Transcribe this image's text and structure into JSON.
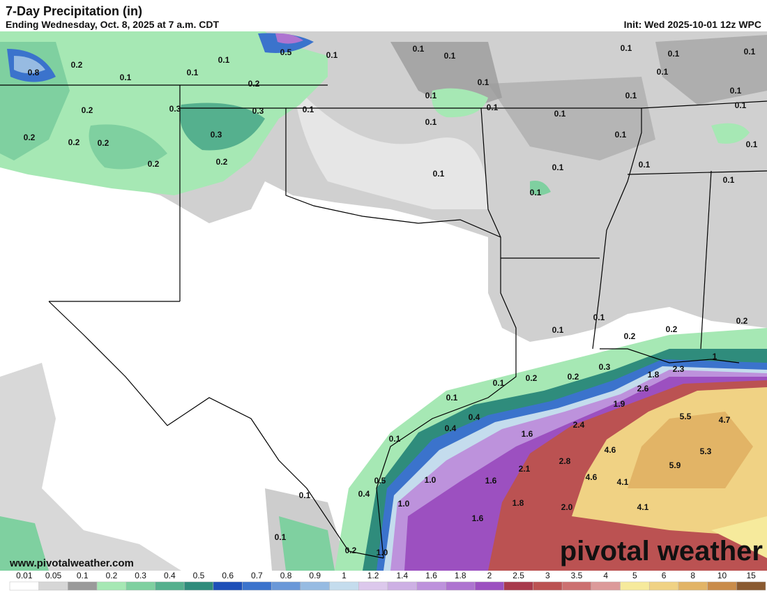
{
  "header": {
    "title": "7-Day Precipitation (in)",
    "subtitle": "Ending Wednesday, Oct. 8, 2025 at 7 a.m. CDT",
    "init": "Init: Wed 2025-10-01 12z WPC"
  },
  "map": {
    "labels": [
      "0.5",
      "0.1",
      "0.1",
      "0.1",
      "0.1",
      "0.1",
      "0.1",
      "0.8",
      "0.2",
      "0.1",
      "0.1",
      "0.1",
      "0.2",
      "0.1",
      "0.1",
      "0.1",
      "0.1",
      "0.1",
      "0.1",
      "0.2",
      "0.3",
      "0.3",
      "0.1",
      "0.1",
      "0.1",
      "0.1",
      "0.2",
      "0.2",
      "0.2",
      "0.3",
      "0.1",
      "0.1",
      "0.2",
      "0.2",
      "0.1",
      "0.1",
      "0.1",
      "0.1",
      "0.1",
      "0.1",
      "0.2",
      "0.2",
      "0.1",
      "0.2",
      "0.3",
      "1.8",
      "2.3",
      "1",
      "0.1",
      "0.2",
      "0.2",
      "2.6",
      "0.1",
      "0.4",
      "1.9",
      "2.4",
      "5.5",
      "4.7",
      "0.4",
      "1.6",
      "0.1",
      "4.6",
      "5.3",
      "2.8",
      "2.1",
      "5.9",
      "4.6",
      "4.1",
      "0.5",
      "1.0",
      "1.6",
      "0.4",
      "0.1",
      "1.0",
      "1.8",
      "2.0",
      "4.1",
      "1.6",
      "0.1",
      "0.2",
      "1.0"
    ]
  },
  "footer": {
    "website": "www.pivotalweather.com",
    "brand": "pivotal weather"
  },
  "legend": {
    "ticks": [
      0.01,
      0.05,
      0.1,
      0.2,
      0.3,
      0.4,
      0.5,
      0.6,
      0.7,
      0.8,
      0.9,
      1,
      1.2,
      1.4,
      1.6,
      1.8,
      2,
      2.5,
      3,
      3.5,
      4,
      5,
      6,
      8,
      10,
      15
    ],
    "colors": [
      "#ffffff",
      "#d6d6d6",
      "#9a9a9a",
      "#a6e8b4",
      "#7fd0a0",
      "#55b08e",
      "#2f8c7c",
      "#1d4fb8",
      "#3b73cc",
      "#6a98d8",
      "#97bbe2",
      "#c4dced",
      "#dcc8ec",
      "#cdb0e4",
      "#bd92dc",
      "#ae74d0",
      "#9c50c0",
      "#a83a4c",
      "#bb5252",
      "#cc7070",
      "#dc9a9a",
      "#f6ea9c",
      "#f0d284",
      "#e2b466",
      "#c98c4a",
      "#8a5a30"
    ]
  }
}
